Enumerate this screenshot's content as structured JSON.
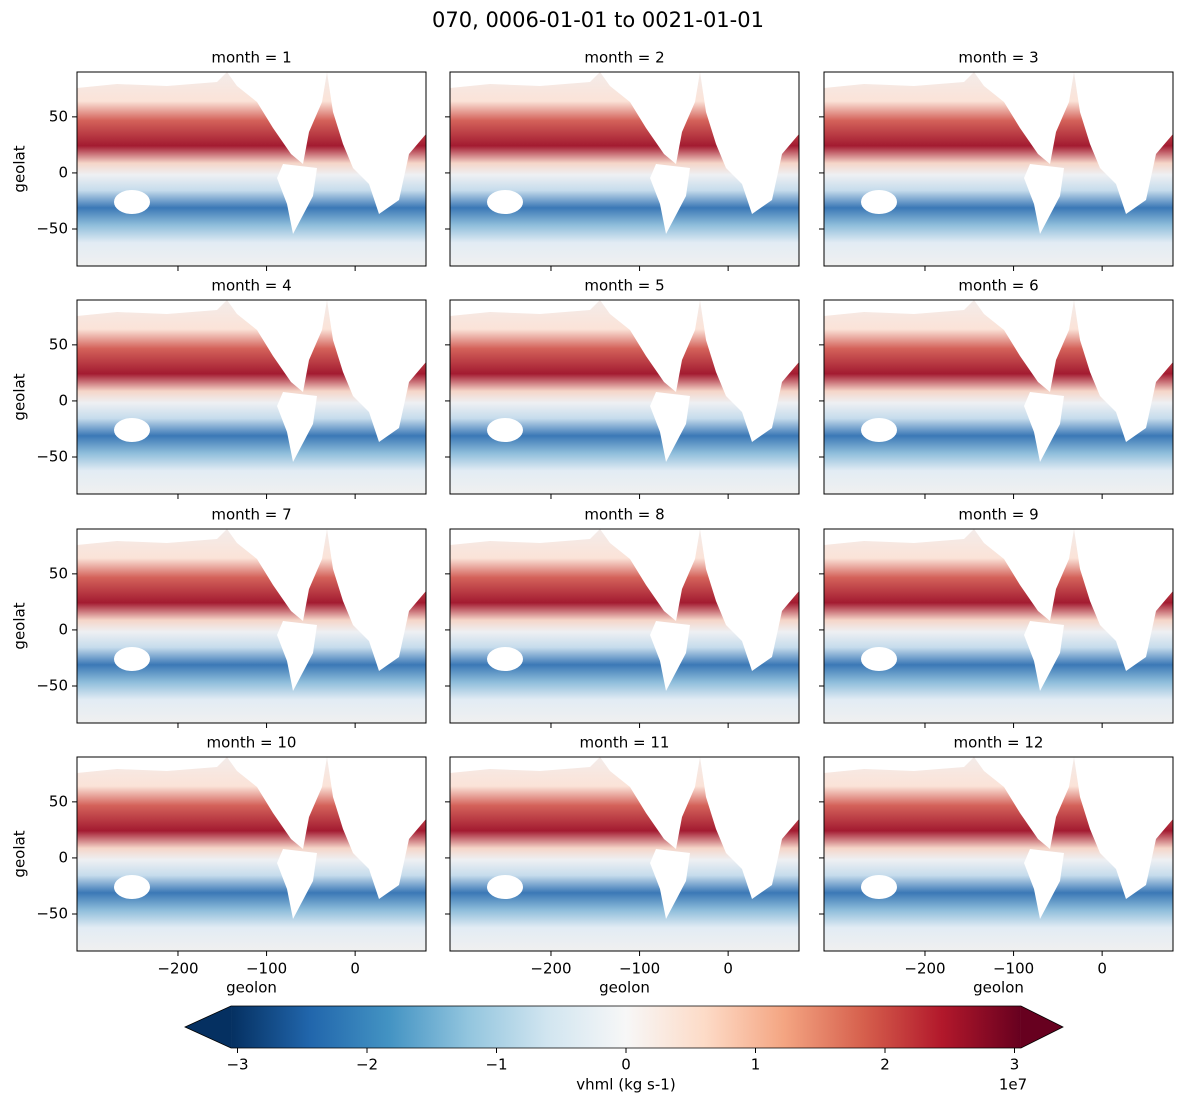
{
  "chart_data": {
    "type": "heatmap",
    "title": "070, 0006-01-01 to 0021-01-01",
    "panels": [
      {
        "title": "month = 1"
      },
      {
        "title": "month = 2"
      },
      {
        "title": "month = 3"
      },
      {
        "title": "month = 4"
      },
      {
        "title": "month = 5"
      },
      {
        "title": "month = 6"
      },
      {
        "title": "month = 7"
      },
      {
        "title": "month = 8"
      },
      {
        "title": "month = 9"
      },
      {
        "title": "month = 10"
      },
      {
        "title": "month = 11"
      },
      {
        "title": "month = 12"
      }
    ],
    "xlabel": "geolon",
    "ylabel": "geolat",
    "xlim": [
      -314,
      80
    ],
    "ylim": [
      -83,
      90
    ],
    "xticks": [
      {
        "value": -200,
        "label": "−200"
      },
      {
        "value": -100,
        "label": "−100"
      },
      0
    ],
    "yticks": [
      {
        "value": -50,
        "label": "−50"
      },
      0,
      50
    ],
    "colorbar": {
      "label": "vhml (kg s-1)",
      "offset_label": "1e7",
      "lim": [
        -3.05,
        3.05
      ],
      "ticks": [
        {
          "value": -3,
          "label": "−3"
        },
        {
          "value": -2,
          "label": "−2"
        },
        {
          "value": -1,
          "label": "−1"
        },
        0,
        1,
        2,
        3
      ],
      "extend": "both",
      "colors": [
        "#053061",
        "#2166ac",
        "#4393c3",
        "#92c5de",
        "#d1e5f0",
        "#f7f7f7",
        "#fddbc7",
        "#f4a582",
        "#d6604d",
        "#b2182b",
        "#67001f"
      ]
    }
  }
}
